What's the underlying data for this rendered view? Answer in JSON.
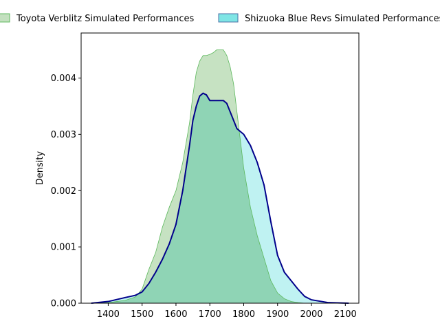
{
  "chart_data": {
    "type": "area",
    "title": "",
    "xlabel": "",
    "ylabel": "Density",
    "xlim": [
      1320,
      2140
    ],
    "ylim": [
      0,
      0.0048
    ],
    "grid": false,
    "legend_placement": "top",
    "x_ticks": [
      1400,
      1500,
      1600,
      1700,
      1800,
      1900,
      2000,
      2100
    ],
    "x_tick_labels": [
      "1400",
      "1500",
      "1600",
      "1700",
      "1800",
      "1900",
      "2000",
      "2100"
    ],
    "y_ticks": [
      0,
      0.001,
      0.002,
      0.003,
      0.004
    ],
    "y_tick_labels": [
      "0.000",
      "0.001",
      "0.002",
      "0.003",
      "0.004"
    ],
    "series": [
      {
        "name": "Toyota Verblitz Simulated Performances",
        "fill": "#c3e0bf",
        "edge": "#5cb85c",
        "x": [
          1350,
          1400,
          1450,
          1480,
          1500,
          1520,
          1540,
          1560,
          1580,
          1600,
          1620,
          1640,
          1650,
          1660,
          1670,
          1680,
          1690,
          1700,
          1710,
          1720,
          1730,
          1740,
          1750,
          1760,
          1770,
          1780,
          1790,
          1800,
          1820,
          1840,
          1860,
          1880,
          1900,
          1920,
          1940,
          1960,
          1980
        ],
        "y": [
          0,
          1e-05,
          5e-05,
          0.00011,
          0.00025,
          0.0006,
          0.0009,
          0.00135,
          0.0017,
          0.002,
          0.0025,
          0.0032,
          0.0037,
          0.0041,
          0.0043,
          0.0044,
          0.0044,
          0.00442,
          0.00445,
          0.0045,
          0.0045,
          0.0045,
          0.0044,
          0.0042,
          0.0039,
          0.0034,
          0.0029,
          0.0024,
          0.0017,
          0.0012,
          0.0008,
          0.0004,
          0.00018,
          8e-05,
          3e-05,
          1e-05,
          0
        ]
      },
      {
        "name": "Shizuoka Blue Revs Simulated Performances",
        "fill": "#7fe5e5",
        "edge": "#00008b",
        "x": [
          1350,
          1400,
          1450,
          1480,
          1500,
          1520,
          1540,
          1560,
          1580,
          1600,
          1620,
          1640,
          1650,
          1660,
          1670,
          1680,
          1690,
          1700,
          1710,
          1720,
          1730,
          1740,
          1750,
          1760,
          1780,
          1800,
          1820,
          1840,
          1860,
          1880,
          1900,
          1920,
          1940,
          1960,
          1980,
          2000,
          2050,
          2110
        ],
        "y": [
          0,
          3e-05,
          0.0001,
          0.00014,
          0.0002,
          0.00035,
          0.00055,
          0.00078,
          0.00105,
          0.0014,
          0.002,
          0.0028,
          0.00325,
          0.0035,
          0.00368,
          0.00373,
          0.0037,
          0.0036,
          0.0036,
          0.0036,
          0.0036,
          0.0036,
          0.00355,
          0.0034,
          0.0031,
          0.003,
          0.0028,
          0.0025,
          0.0021,
          0.00145,
          0.00085,
          0.00055,
          0.0004,
          0.00025,
          0.00012,
          6e-05,
          1e-05,
          0
        ]
      }
    ]
  }
}
